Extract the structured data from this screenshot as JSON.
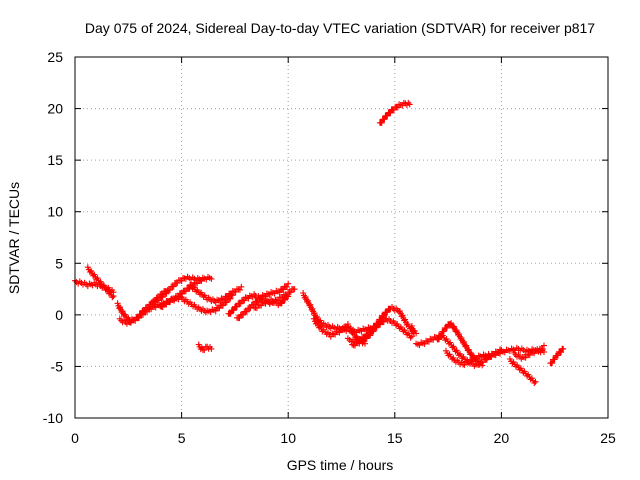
{
  "chart_data": {
    "type": "scatter",
    "title": "Day 075 of 2024, Sidereal Day-to-day VTEC variation (SDTVAR) for receiver p817",
    "xlabel": "GPS time / hours",
    "ylabel": "SDTVAR / TECUs",
    "xlim": [
      0,
      25
    ],
    "ylim": [
      -10,
      25
    ],
    "x_ticks": [
      0,
      5,
      10,
      15,
      20,
      25
    ],
    "x_tick_labels": [
      "0",
      "5",
      "10",
      "15",
      "20",
      "25"
    ],
    "y_ticks": [
      -10,
      -5,
      0,
      5,
      10,
      15,
      20,
      25
    ],
    "y_tick_labels": [
      "-10",
      "-5",
      "0",
      "5",
      "10",
      "15",
      "20",
      "25"
    ],
    "grid": true,
    "marker": "plus",
    "series": [
      {
        "name": "SDTVAR",
        "color": "#ff0000",
        "tracks": [
          {
            "x": [
              0.0,
              0.3,
              0.6,
              0.9,
              1.2,
              1.5,
              1.8
            ],
            "y": [
              3.2,
              3.1,
              2.9,
              3.0,
              2.8,
              2.6,
              2.2
            ]
          },
          {
            "x": [
              0.6,
              0.9,
              1.2,
              1.5,
              1.8
            ],
            "y": [
              4.5,
              3.8,
              3.1,
              2.4,
              1.7
            ]
          },
          {
            "x": [
              2.0,
              2.3,
              2.6,
              2.9,
              3.2,
              3.6,
              4.0,
              4.3
            ],
            "y": [
              1.0,
              0.0,
              -0.6,
              -0.4,
              0.4,
              1.1,
              1.9,
              2.4
            ]
          },
          {
            "x": [
              2.1,
              2.5,
              3.0,
              3.5,
              4.0,
              4.5,
              5.0
            ],
            "y": [
              -0.5,
              -0.8,
              -0.2,
              0.6,
              1.0,
              1.4,
              1.7
            ]
          },
          {
            "x": [
              4.0,
              4.4,
              4.8,
              5.2,
              5.6,
              6.0,
              6.4
            ],
            "y": [
              0.7,
              1.3,
              1.8,
              2.4,
              3.0,
              3.5,
              3.6
            ]
          },
          {
            "x": [
              3.6,
              4.0,
              4.4,
              4.8,
              5.2,
              5.6,
              6.0
            ],
            "y": [
              1.1,
              1.6,
              2.4,
              3.2,
              3.6,
              3.5,
              3.4
            ]
          },
          {
            "x": [
              5.0,
              5.4,
              5.8,
              6.2,
              6.6,
              7.0,
              7.4
            ],
            "y": [
              1.6,
              1.1,
              0.6,
              0.3,
              0.5,
              1.1,
              1.9
            ]
          },
          {
            "x": [
              5.4,
              5.8,
              6.2,
              6.6,
              7.0,
              7.4,
              7.8
            ],
            "y": [
              2.8,
              2.2,
              1.6,
              1.3,
              1.6,
              2.2,
              2.6
            ]
          },
          {
            "x": [
              5.8,
              6.0,
              6.2,
              6.4
            ],
            "y": [
              -3.0,
              -3.4,
              -3.1,
              -3.3
            ]
          },
          {
            "x": [
              7.2,
              7.6,
              8.0,
              8.4,
              8.8,
              9.2,
              9.6,
              10.0,
              10.3
            ],
            "y": [
              0.0,
              0.9,
              1.6,
              1.9,
              1.5,
              1.1,
              1.6,
              2.1,
              2.6
            ]
          },
          {
            "x": [
              7.6,
              8.0,
              8.4,
              8.8,
              9.2,
              9.6,
              10.0
            ],
            "y": [
              -0.4,
              0.3,
              1.1,
              1.8,
              2.1,
              2.3,
              2.9
            ]
          },
          {
            "x": [
              8.4,
              8.8,
              9.2,
              9.6,
              10.0
            ],
            "y": [
              0.6,
              1.1,
              1.4,
              1.0,
              1.9
            ]
          },
          {
            "x": [
              10.7,
              11.0,
              11.3,
              11.6,
              12.0,
              12.4,
              12.8,
              13.2,
              13.6,
              14.0,
              14.4
            ],
            "y": [
              2.0,
              1.0,
              -0.2,
              -0.9,
              -1.2,
              -1.3,
              -1.5,
              -1.6,
              -1.4,
              -1.2,
              -0.6
            ]
          },
          {
            "x": [
              11.2,
              11.6,
              12.0,
              12.4,
              12.8,
              13.2,
              13.6
            ],
            "y": [
              -0.5,
              -1.5,
              -2.0,
              -1.6,
              -1.0,
              -2.2,
              -2.8
            ]
          },
          {
            "x": [
              12.8,
              13.2,
              13.6,
              14.0,
              14.4,
              14.8,
              15.2,
              15.6,
              16.0
            ],
            "y": [
              -2.4,
              -2.6,
              -2.1,
              -1.3,
              -0.2,
              0.7,
              0.4,
              -1.0,
              -1.8
            ]
          },
          {
            "x": [
              13.0,
              13.4,
              13.8,
              14.2,
              14.6,
              15.0,
              15.4,
              15.8
            ],
            "y": [
              -3.0,
              -2.6,
              -2.0,
              -1.0,
              -0.4,
              -0.8,
              -1.5,
              -2.2
            ]
          },
          {
            "x": [
              14.3,
              14.6,
              14.9,
              15.2,
              15.5,
              15.7
            ],
            "y": [
              18.5,
              19.3,
              19.9,
              20.3,
              20.5,
              20.4
            ]
          },
          {
            "x": [
              15.8,
              15.9
            ],
            "y": [
              -1.2,
              -1.8
            ]
          },
          {
            "x": [
              16.0,
              16.4,
              16.8,
              17.2,
              17.6,
              18.0,
              18.4,
              18.8,
              19.2,
              19.6,
              20.0
            ],
            "y": [
              -2.9,
              -2.7,
              -2.3,
              -2.0,
              -2.8,
              -3.8,
              -4.5,
              -4.9,
              -4.4,
              -3.8,
              -3.4
            ]
          },
          {
            "x": [
              17.0,
              17.3,
              17.6,
              17.9,
              18.2,
              18.5,
              18.8,
              19.1
            ],
            "y": [
              -2.5,
              -1.5,
              -0.8,
              -1.6,
              -2.6,
              -3.6,
              -4.4,
              -4.9
            ]
          },
          {
            "x": [
              17.4,
              17.8,
              18.2,
              18.6,
              19.0,
              19.4
            ],
            "y": [
              -3.6,
              -4.4,
              -4.8,
              -4.4,
              -4.0,
              -3.9
            ]
          },
          {
            "x": [
              19.2,
              19.6,
              20.0,
              20.4,
              20.8,
              21.2,
              21.6,
              22.0
            ],
            "y": [
              -4.2,
              -3.9,
              -3.6,
              -3.4,
              -3.3,
              -3.5,
              -3.4,
              -3.6
            ]
          },
          {
            "x": [
              20.4,
              20.8,
              21.2,
              21.6
            ],
            "y": [
              -4.4,
              -5.1,
              -5.8,
              -6.6
            ]
          },
          {
            "x": [
              20.6,
              21.0,
              21.4,
              21.8,
              22.0
            ],
            "y": [
              -3.8,
              -4.2,
              -3.7,
              -3.4,
              -3.1
            ]
          },
          {
            "x": [
              22.3,
              22.5,
              22.7,
              22.9
            ],
            "y": [
              -4.8,
              -4.2,
              -3.7,
              -3.3
            ]
          }
        ]
      }
    ]
  }
}
